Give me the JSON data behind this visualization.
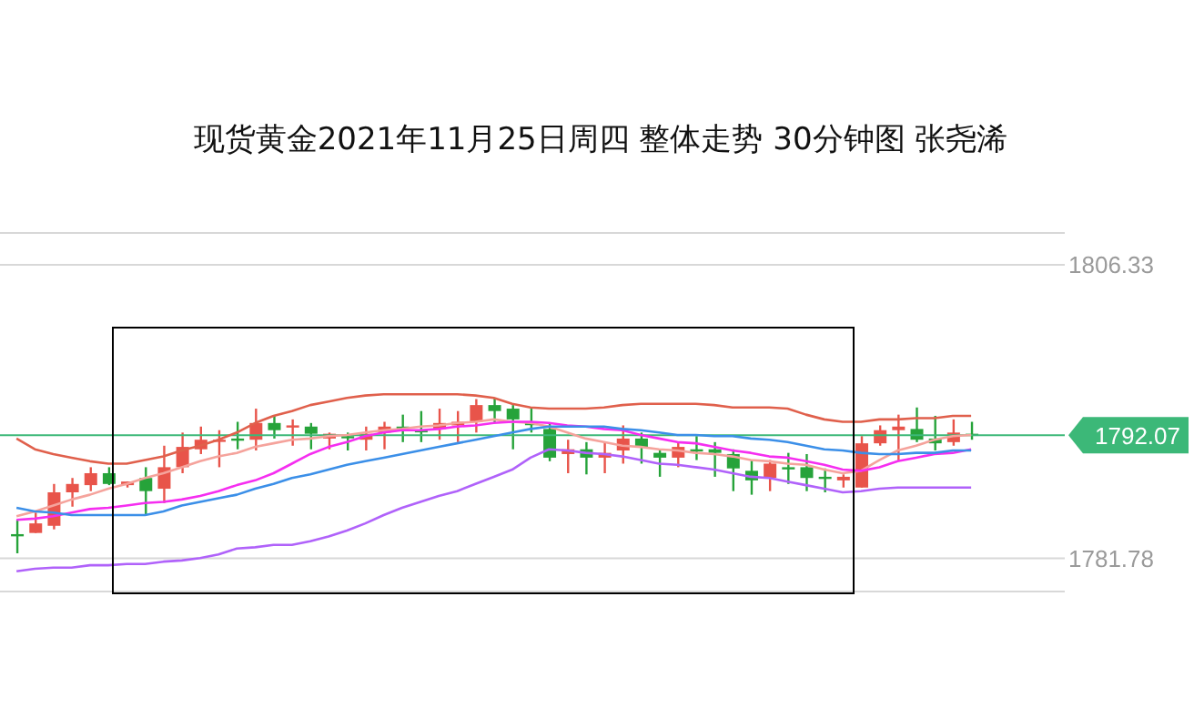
{
  "chart_data": {
    "type": "candlestick",
    "title": "现货黄金2021年11月25日周四 整体走势  30分钟图  张尧浠",
    "categories": [
      null,
      null,
      null,
      null,
      null,
      null,
      null,
      null,
      null,
      null,
      null,
      null,
      null,
      null,
      null,
      null,
      null,
      null,
      null,
      null,
      null,
      null,
      null,
      null,
      null,
      null,
      null,
      null,
      null,
      null,
      null,
      null,
      null,
      null,
      null,
      null,
      null,
      null,
      null,
      null,
      null,
      null,
      null,
      null,
      null,
      null,
      null,
      null,
      null,
      null,
      null,
      null,
      null
    ],
    "ohlc": [
      [
        1783.8,
        1785.0,
        1782.2,
        1783.7
      ],
      [
        1783.9,
        1785.6,
        1783.9,
        1784.7
      ],
      [
        1784.5,
        1788.0,
        1784.2,
        1787.3
      ],
      [
        1787.3,
        1788.5,
        1786.1,
        1788.0
      ],
      [
        1787.9,
        1789.4,
        1787.4,
        1788.9
      ],
      [
        1788.9,
        1789.4,
        1787.9,
        1788.0
      ],
      [
        1787.9,
        1788.2,
        1787.7,
        1788.2
      ],
      [
        1788.5,
        1789.4,
        1785.4,
        1787.4
      ],
      [
        1787.6,
        1791.2,
        1786.4,
        1789.4
      ],
      [
        1789.4,
        1792.3,
        1788.9,
        1791.1
      ],
      [
        1790.9,
        1792.8,
        1790.5,
        1791.7
      ],
      [
        1791.6,
        1792.5,
        1789.4,
        1791.7
      ],
      [
        1791.8,
        1793.2,
        1790.9,
        1791.7
      ],
      [
        1791.7,
        1794.3,
        1790.8,
        1793.1
      ],
      [
        1793.1,
        1793.7,
        1791.8,
        1792.5
      ],
      [
        1792.8,
        1793.4,
        1791.2,
        1792.9
      ],
      [
        1792.8,
        1793.1,
        1790.9,
        1792.2
      ],
      [
        1791.8,
        1792.3,
        1790.9,
        1792.2
      ],
      [
        1792.0,
        1792.3,
        1790.8,
        1791.9
      ],
      [
        1791.7,
        1792.8,
        1790.8,
        1792.2
      ],
      [
        1792.3,
        1793.2,
        1790.9,
        1792.8
      ],
      [
        1792.8,
        1793.8,
        1791.5,
        1792.7
      ],
      [
        1792.5,
        1794.1,
        1791.5,
        1792.4
      ],
      [
        1792.6,
        1794.3,
        1791.7,
        1793.1
      ],
      [
        1792.9,
        1794.1,
        1791.5,
        1793.2
      ],
      [
        1793.2,
        1795.1,
        1792.3,
        1794.6
      ],
      [
        1794.6,
        1795.2,
        1793.1,
        1794.1
      ],
      [
        1794.3,
        1794.6,
        1790.9,
        1793.4
      ],
      [
        1793.1,
        1794.3,
        1792.3,
        1793.0
      ],
      [
        1792.6,
        1793.1,
        1789.9,
        1790.2
      ],
      [
        1790.5,
        1791.7,
        1788.9,
        1790.9
      ],
      [
        1790.9,
        1791.5,
        1788.8,
        1790.2
      ],
      [
        1790.2,
        1791.5,
        1788.9,
        1790.6
      ],
      [
        1790.8,
        1792.9,
        1789.7,
        1791.8
      ],
      [
        1791.8,
        1792.3,
        1789.7,
        1791.1
      ],
      [
        1790.6,
        1790.9,
        1788.6,
        1790.2
      ],
      [
        1790.2,
        1791.5,
        1789.4,
        1791.1
      ],
      [
        1790.9,
        1792.0,
        1790.0,
        1790.8
      ],
      [
        1790.9,
        1791.5,
        1788.6,
        1790.6
      ],
      [
        1790.5,
        1790.9,
        1787.4,
        1789.3
      ],
      [
        1789.1,
        1790.0,
        1787.1,
        1788.3
      ],
      [
        1788.5,
        1790.0,
        1787.4,
        1789.7
      ],
      [
        1789.4,
        1790.6,
        1788.0,
        1789.3
      ],
      [
        1789.4,
        1790.5,
        1787.4,
        1788.5
      ],
      [
        1788.6,
        1789.3,
        1787.3,
        1788.5
      ],
      [
        1788.3,
        1788.8,
        1787.7,
        1788.6
      ],
      [
        1787.7,
        1792.0,
        1787.7,
        1791.4
      ],
      [
        1791.4,
        1792.9,
        1791.2,
        1792.5
      ],
      [
        1792.5,
        1793.8,
        1789.9,
        1792.8
      ],
      [
        1792.6,
        1794.4,
        1791.5,
        1791.7
      ],
      [
        1791.8,
        1793.7,
        1790.8,
        1791.4
      ],
      [
        1791.5,
        1793.4,
        1791.2,
        1792.3
      ],
      [
        1792.2,
        1793.2,
        1791.7,
        1792.07
      ]
    ],
    "colors": [
      "#26a33a",
      "#e8544a",
      "#e8544a",
      "#e8544a",
      "#e8544a",
      "#26a33a",
      "#e8544a",
      "#26a33a",
      "#e8544a",
      "#e8544a",
      "#e8544a",
      "#e8544a",
      "#26a33a",
      "#e8544a",
      "#26a33a",
      "#e8544a",
      "#26a33a",
      "#e8544a",
      "#26a33a",
      "#e8544a",
      "#e8544a",
      "#26a33a",
      "#26a33a",
      "#e8544a",
      "#e8544a",
      "#e8544a",
      "#26a33a",
      "#26a33a",
      "#26a33a",
      "#26a33a",
      "#e8544a",
      "#26a33a",
      "#e8544a",
      "#e8544a",
      "#26a33a",
      "#26a33a",
      "#e8544a",
      "#26a33a",
      "#26a33a",
      "#26a33a",
      "#26a33a",
      "#e8544a",
      "#26a33a",
      "#26a33a",
      "#26a33a",
      "#e8544a",
      "#e8544a",
      "#e8544a",
      "#e8544a",
      "#26a33a",
      "#26a33a",
      "#e8544a",
      "#26a33a"
    ],
    "series": [
      {
        "type": "line",
        "color": "#e0604c",
        "values": [
          1791.8,
          1790.9,
          1790.5,
          1790.2,
          1789.9,
          1789.7,
          1789.7,
          1790.0,
          1790.3,
          1790.8,
          1791.2,
          1791.7,
          1792.3,
          1793.1,
          1793.7,
          1794.1,
          1794.6,
          1794.9,
          1795.2,
          1795.4,
          1795.5,
          1795.5,
          1795.5,
          1795.5,
          1795.5,
          1795.4,
          1795.2,
          1794.7,
          1794.4,
          1794.3,
          1794.3,
          1794.3,
          1794.4,
          1794.6,
          1794.7,
          1794.7,
          1794.7,
          1794.7,
          1794.6,
          1794.4,
          1794.4,
          1794.4,
          1794.3,
          1793.8,
          1793.4,
          1793.2,
          1793.2,
          1793.4,
          1793.4,
          1793.5,
          1793.5,
          1793.7,
          1793.7
        ]
      },
      {
        "type": "line",
        "color": "#f5a39c",
        "values": [
          1785.3,
          1785.7,
          1786.2,
          1786.7,
          1787.1,
          1787.6,
          1788.0,
          1788.5,
          1788.9,
          1789.4,
          1789.9,
          1790.3,
          1790.6,
          1791.1,
          1791.4,
          1791.7,
          1791.8,
          1792.0,
          1792.1,
          1792.3,
          1792.5,
          1792.6,
          1792.8,
          1792.9,
          1793.1,
          1793.2,
          1793.4,
          1793.2,
          1793.1,
          1792.8,
          1792.3,
          1791.8,
          1791.5,
          1791.2,
          1791.1,
          1790.9,
          1790.8,
          1790.6,
          1790.5,
          1790.3,
          1790.0,
          1789.9,
          1789.7,
          1789.6,
          1789.2,
          1788.9,
          1789.1,
          1790.0,
          1790.8,
          1791.2,
          1791.7,
          1792.0,
          1792.1
        ]
      },
      {
        "type": "line",
        "color": "#f52ef0",
        "values": [
          1785.0,
          1785.1,
          1785.3,
          1785.6,
          1785.9,
          1786.0,
          1786.2,
          1786.4,
          1786.5,
          1786.7,
          1787.0,
          1787.4,
          1787.9,
          1788.3,
          1788.9,
          1789.7,
          1790.5,
          1791.1,
          1791.5,
          1792.0,
          1792.3,
          1792.5,
          1792.5,
          1792.6,
          1792.8,
          1792.9,
          1793.1,
          1793.2,
          1793.2,
          1793.1,
          1792.9,
          1792.8,
          1792.6,
          1792.5,
          1792.1,
          1791.8,
          1791.5,
          1791.4,
          1791.1,
          1790.8,
          1790.6,
          1790.3,
          1790.2,
          1789.9,
          1789.6,
          1789.2,
          1789.1,
          1789.4,
          1789.9,
          1790.2,
          1790.5,
          1790.6,
          1790.9
        ]
      },
      {
        "type": "line",
        "color": "#3b8fe8",
        "values": [
          1786.0,
          1785.7,
          1785.6,
          1785.4,
          1785.4,
          1785.4,
          1785.4,
          1785.4,
          1785.7,
          1786.2,
          1786.5,
          1786.8,
          1787.1,
          1787.6,
          1788.0,
          1788.5,
          1788.8,
          1789.2,
          1789.6,
          1789.9,
          1790.2,
          1790.5,
          1790.8,
          1791.1,
          1791.4,
          1791.7,
          1792.0,
          1792.3,
          1792.6,
          1792.8,
          1792.8,
          1792.8,
          1792.8,
          1792.6,
          1792.5,
          1792.3,
          1792.1,
          1792.1,
          1792.0,
          1792.0,
          1791.8,
          1791.7,
          1791.5,
          1791.2,
          1790.9,
          1790.8,
          1790.6,
          1790.5,
          1790.5,
          1790.6,
          1790.6,
          1790.8,
          1790.8
        ]
      },
      {
        "type": "line",
        "color": "#b062fa",
        "values": [
          1780.7,
          1780.9,
          1781.0,
          1781.0,
          1781.2,
          1781.2,
          1781.3,
          1781.3,
          1781.5,
          1781.6,
          1781.8,
          1782.1,
          1782.6,
          1782.7,
          1782.9,
          1782.9,
          1783.2,
          1783.6,
          1784.1,
          1784.7,
          1785.4,
          1786.0,
          1786.5,
          1787.0,
          1787.4,
          1788.0,
          1788.6,
          1789.2,
          1790.2,
          1790.9,
          1790.8,
          1790.6,
          1790.5,
          1790.3,
          1790.0,
          1789.7,
          1789.6,
          1789.4,
          1789.2,
          1788.9,
          1788.6,
          1788.5,
          1788.2,
          1787.9,
          1787.6,
          1787.3,
          1787.4,
          1787.6,
          1787.7,
          1787.7,
          1787.7,
          1787.7,
          1787.7
        ]
      }
    ],
    "ylim": [
      1779,
      1809
    ],
    "yticks": [
      1806.33,
      1781.78
    ],
    "grid": "y",
    "marker": "none",
    "ref_lines": [
      {
        "axis": "y",
        "value": 1792.07,
        "label": "1792.07",
        "color": "#3cb878"
      }
    ]
  }
}
